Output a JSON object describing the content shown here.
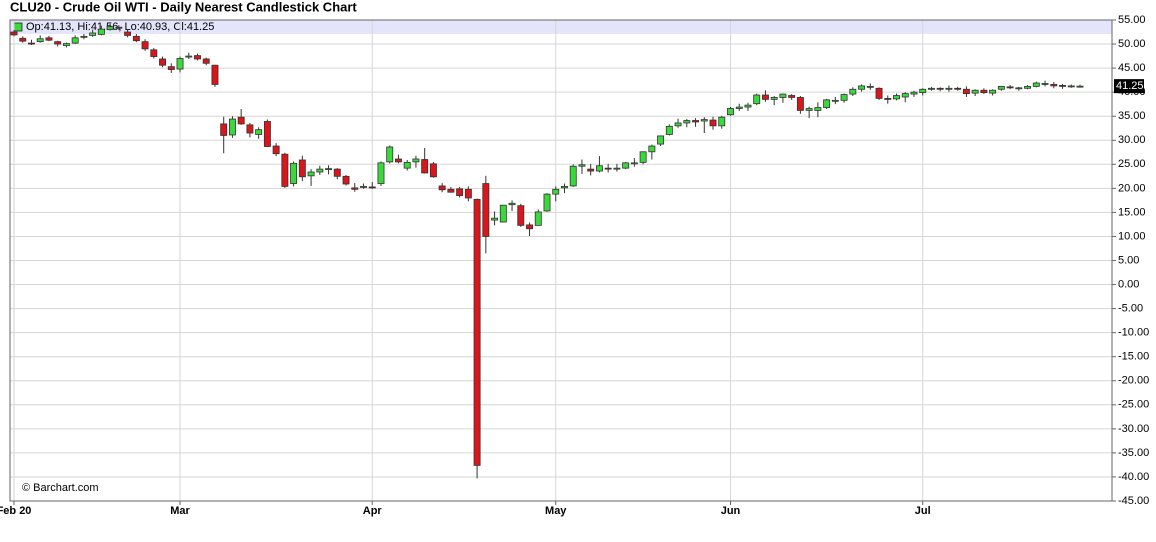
{
  "chart_data": {
    "type": "candlestick",
    "title": "CLU20 - Crude Oil WTI - Daily Nearest Candlestick Chart",
    "ohlc_label": "Op:41.13, Hi:41.56, Lo:40.93, Cl:41.25",
    "credit": "© Barchart.com",
    "categories": [
      "Feb 20",
      null,
      null,
      null,
      null,
      null,
      null,
      null,
      null,
      null,
      null,
      null,
      null,
      null,
      null,
      null,
      null,
      null,
      null,
      "Mar",
      null,
      null,
      null,
      null,
      null,
      null,
      null,
      null,
      null,
      null,
      null,
      null,
      null,
      null,
      null,
      null,
      null,
      null,
      null,
      null,
      null,
      "Apr",
      null,
      null,
      null,
      null,
      null,
      null,
      null,
      null,
      null,
      null,
      null,
      null,
      null,
      null,
      null,
      null,
      null,
      null,
      null,
      null,
      "May",
      null,
      null,
      null,
      null,
      null,
      null,
      null,
      null,
      null,
      null,
      null,
      null,
      null,
      null,
      null,
      null,
      null,
      null,
      null,
      "Jun",
      null,
      null,
      null,
      null,
      null,
      null,
      null,
      null,
      null,
      null,
      null,
      null,
      null,
      null,
      null,
      null,
      null,
      null,
      null,
      null,
      null,
      "Jul",
      null,
      null,
      null,
      null,
      null,
      null,
      null,
      null,
      null,
      null,
      null,
      null,
      null,
      null,
      null,
      null,
      null,
      null
    ],
    "open": [
      52.5,
      51.2,
      50.2,
      50.5,
      51.3,
      50.5,
      49.7,
      50.2,
      51.4,
      51.8,
      52.0,
      53.0,
      53.5,
      52.5,
      51.6,
      50.5,
      48.8,
      46.9,
      45.3,
      44.8,
      47.4,
      47.6,
      46.9,
      45.6,
      33.4,
      31.1,
      34.8,
      33.2,
      31.2,
      33.9,
      28.8,
      27.1,
      21.0,
      25.9,
      22.6,
      23.4,
      24.0,
      24.0,
      22.5,
      20.1,
      20.3,
      20.3,
      21.0,
      25.5,
      26.1,
      24.2,
      25.5,
      26.0,
      25.1,
      20.5,
      19.8,
      19.9,
      19.8,
      17.7,
      21.0,
      13.4,
      13.0,
      16.6,
      16.4,
      12.4,
      12.3,
      15.3,
      18.8,
      20.1,
      20.5,
      24.6,
      24.0,
      23.6,
      24.2,
      24.0,
      24.2,
      25.3,
      25.4,
      27.6,
      29.2,
      31.2,
      33.0,
      33.6,
      34.1,
      34.0,
      34.2,
      33.0,
      35.3,
      36.6,
      36.9,
      37.6,
      39.4,
      38.5,
      38.9,
      39.3,
      38.9,
      36.2,
      36.2,
      36.8,
      38.2,
      38.3,
      39.6,
      40.6,
      41.1,
      40.8,
      38.7,
      38.6,
      39.0,
      39.6,
      39.9,
      40.6,
      40.8,
      40.7,
      40.8,
      40.6,
      39.8,
      40.4,
      39.8,
      40.6,
      41.1,
      40.9,
      40.8,
      41.2,
      41.8,
      41.6,
      41.4,
      41.1,
      41.13
    ],
    "high": [
      52.9,
      51.6,
      50.9,
      51.8,
      51.7,
      50.7,
      50.3,
      51.8,
      52.1,
      53.0,
      53.8,
      54.2,
      53.9,
      53.0,
      52.1,
      51.0,
      49.2,
      47.4,
      46.0,
      47.4,
      48.2,
      48.0,
      47.2,
      45.7,
      34.9,
      35.0,
      36.5,
      33.6,
      32.7,
      34.3,
      29.4,
      27.4,
      25.6,
      26.8,
      24.0,
      24.7,
      24.8,
      24.2,
      22.8,
      21.1,
      21.0,
      21.3,
      25.6,
      28.9,
      27.0,
      25.9,
      26.8,
      28.4,
      25.5,
      21.1,
      20.3,
      20.3,
      20.4,
      17.9,
      22.6,
      15.2,
      16.5,
      17.5,
      16.8,
      12.9,
      15.6,
      19.0,
      20.4,
      21.0,
      25.0,
      26.0,
      25.1,
      26.7,
      25.1,
      25.1,
      25.5,
      26.3,
      27.7,
      29.1,
      31.0,
      33.3,
      34.5,
      34.4,
      34.6,
      34.8,
      34.9,
      35.1,
      36.9,
      37.6,
      37.8,
      39.7,
      40.4,
      39.2,
      39.7,
      39.6,
      39.2,
      37.0,
      37.9,
      38.6,
      39.0,
      39.7,
      41.0,
      41.6,
      41.8,
      41.0,
      39.3,
      39.7,
      40.0,
      40.3,
      40.8,
      41.1,
      41.0,
      41.4,
      41.1,
      41.2,
      40.6,
      40.8,
      40.6,
      41.3,
      41.5,
      41.1,
      41.5,
      42.2,
      42.4,
      42.1,
      41.7,
      41.6,
      41.56
    ],
    "low": [
      51.6,
      50.3,
      49.8,
      50.3,
      50.6,
      49.5,
      49.3,
      50.0,
      51.0,
      51.5,
      51.8,
      52.8,
      52.9,
      51.4,
      50.4,
      48.6,
      47.0,
      45.2,
      44.0,
      44.1,
      46.9,
      46.6,
      45.6,
      41.1,
      27.3,
      30.5,
      33.2,
      30.6,
      30.3,
      28.6,
      26.7,
      20.1,
      20.4,
      21.5,
      20.5,
      22.8,
      22.9,
      21.9,
      20.6,
      19.3,
      19.9,
      19.9,
      20.5,
      25.2,
      25.2,
      23.7,
      24.3,
      23.1,
      22.2,
      19.2,
      19.1,
      18.1,
      17.3,
      -40.3,
      6.5,
      12.3,
      12.9,
      15.3,
      12.0,
      10.1,
      12.3,
      15.1,
      17.3,
      19.0,
      20.3,
      23.0,
      22.7,
      23.3,
      23.3,
      23.5,
      24.0,
      24.5,
      25.0,
      26.0,
      28.8,
      31.0,
      32.6,
      32.7,
      32.8,
      31.5,
      32.2,
      32.4,
      35.1,
      36.1,
      36.1,
      37.3,
      38.0,
      37.3,
      37.8,
      38.4,
      35.5,
      34.6,
      34.8,
      36.5,
      37.5,
      37.8,
      39.2,
      40.1,
      40.5,
      38.4,
      37.6,
      38.3,
      37.9,
      39.0,
      39.3,
      40.3,
      40.2,
      40.1,
      40.3,
      39.0,
      39.2,
      39.6,
      39.3,
      40.3,
      40.6,
      40.3,
      40.6,
      41.0,
      41.2,
      40.8,
      40.7,
      40.9,
      40.93
    ],
    "close": [
      51.9,
      50.6,
      50.0,
      51.1,
      50.8,
      50.0,
      50.1,
      51.3,
      51.6,
      52.3,
      53.1,
      53.6,
      53.3,
      51.8,
      50.7,
      49.0,
      47.4,
      45.6,
      44.7,
      47.0,
      47.5,
      46.9,
      46.0,
      41.6,
      31.0,
      34.4,
      33.4,
      31.5,
      32.2,
      28.7,
      27.2,
      20.4,
      25.2,
      22.4,
      23.4,
      24.0,
      24.1,
      22.5,
      20.9,
      19.8,
      20.4,
      20.1,
      25.3,
      28.6,
      25.5,
      25.4,
      26.1,
      23.2,
      22.4,
      19.7,
      19.2,
      18.5,
      18.0,
      -37.6,
      10.0,
      13.8,
      16.5,
      16.9,
      12.3,
      11.6,
      15.1,
      18.8,
      19.8,
      20.4,
      24.6,
      24.9,
      23.6,
      24.7,
      24.1,
      24.2,
      25.3,
      25.3,
      27.6,
      28.8,
      30.9,
      32.9,
      33.6,
      34.1,
      33.8,
      34.3,
      33.0,
      34.8,
      36.6,
      36.9,
      37.3,
      39.4,
      38.5,
      38.9,
      39.6,
      38.9,
      36.2,
      36.6,
      36.8,
      38.4,
      38.3,
      39.5,
      40.6,
      41.3,
      41.2,
      38.7,
      38.5,
      39.3,
      39.7,
      40.0,
      40.6,
      40.8,
      40.7,
      40.8,
      40.6,
      39.7,
      40.4,
      39.9,
      40.4,
      41.2,
      41.0,
      40.9,
      41.2,
      41.9,
      41.8,
      41.3,
      41.2,
      41.3,
      41.25
    ],
    "up_color": "#3ad83a",
    "down_color": "#d8161b",
    "ylim": [
      -45,
      55
    ],
    "yticks": [
      {
        "value": 55,
        "label": "55.00"
      },
      {
        "value": 50,
        "label": "50.00"
      },
      {
        "value": 45,
        "label": "45.00"
      },
      {
        "value": 40,
        "label": "40.00"
      },
      {
        "value": 35,
        "label": "35.00"
      },
      {
        "value": 30,
        "label": "30.00"
      },
      {
        "value": 25,
        "label": "25.00"
      },
      {
        "value": 20,
        "label": "20.00"
      },
      {
        "value": 15,
        "label": "15.00"
      },
      {
        "value": 10,
        "label": "10.00"
      },
      {
        "value": 5,
        "label": "5.00"
      },
      {
        "value": 0,
        "label": "0.00"
      },
      {
        "value": -5,
        "label": "-5.00"
      },
      {
        "value": -10,
        "label": "-10.00"
      },
      {
        "value": -15,
        "label": "-15.00"
      },
      {
        "value": -20,
        "label": "-20.00"
      },
      {
        "value": -25,
        "label": "-25.00"
      },
      {
        "value": -30,
        "label": "-30.00"
      },
      {
        "value": -35,
        "label": "-35.00"
      },
      {
        "value": -40,
        "label": "-40.00"
      },
      {
        "value": -45,
        "label": "-45.00"
      }
    ],
    "grid": true,
    "last_value": 41.25
  }
}
